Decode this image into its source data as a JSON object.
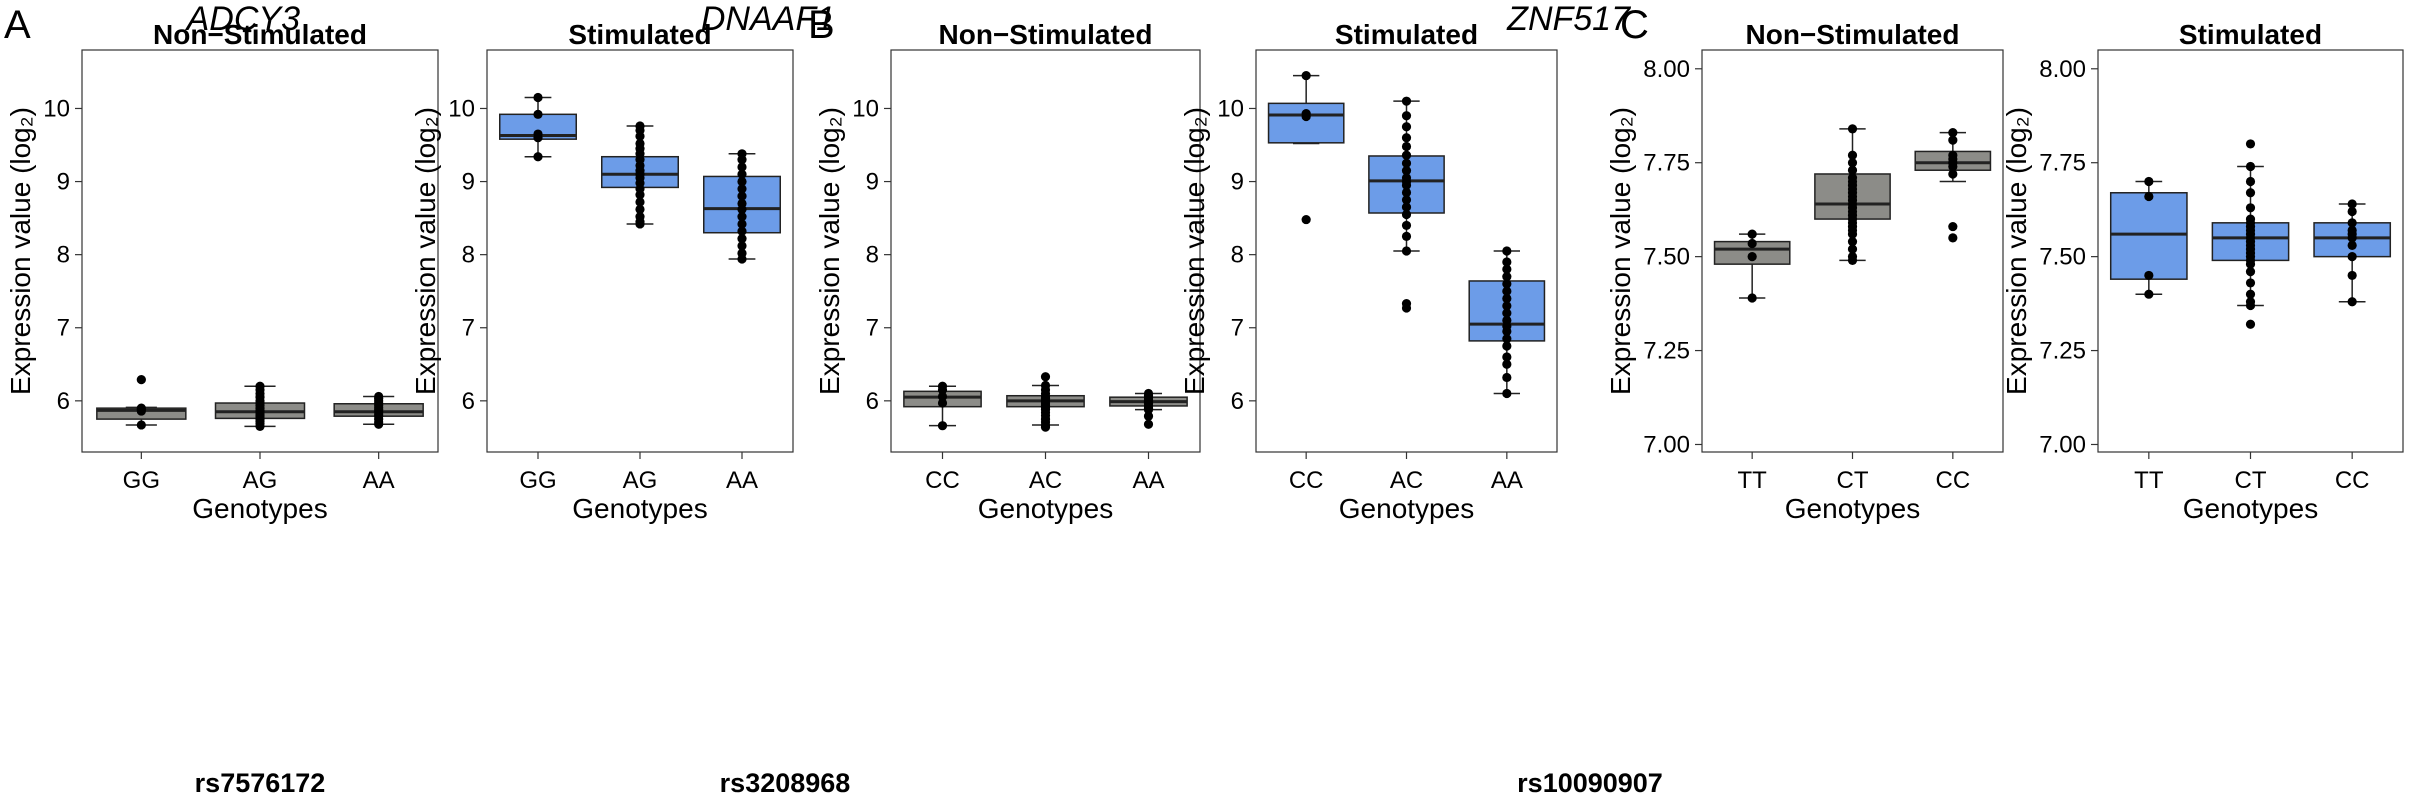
{
  "groups": [
    {
      "letter": "A",
      "gene": "ADCY3",
      "snp": "rs7576172"
    },
    {
      "letter": "B",
      "gene": "DNAAF1",
      "snp": "rs3208968"
    },
    {
      "letter": "C",
      "gene": "ZNF517",
      "snp": "rs10090907"
    }
  ],
  "colors": {
    "non_stimulated": "#8c8c88",
    "stimulated": "#6c9ce8",
    "outline": "#222222"
  },
  "chart_data": [
    {
      "type": "box",
      "group": "A",
      "title": "Non−Stimulated",
      "xlabel": "Genotypes",
      "ylabel": "Expression value (log₂)",
      "ylim": [
        5.3,
        10.8
      ],
      "yticks": [
        6,
        7,
        8,
        9,
        10
      ],
      "ytick_labels": [
        "6",
        "7",
        "8",
        "9",
        "10"
      ],
      "categories": [
        "GG",
        "AG",
        "AA"
      ],
      "color": "#8c8c88",
      "boxes": [
        {
          "min": 5.67,
          "q1": 5.75,
          "median": 5.87,
          "q3": 5.9,
          "max": 5.91,
          "points": [
            6.29,
            5.9,
            5.88,
            5.86,
            5.67
          ]
        },
        {
          "min": 5.65,
          "q1": 5.76,
          "median": 5.85,
          "q3": 5.97,
          "max": 6.2,
          "points": [
            6.2,
            6.15,
            6.1,
            6.05,
            6.0,
            5.97,
            5.94,
            5.9,
            5.87,
            5.85,
            5.82,
            5.8,
            5.78,
            5.75,
            5.72,
            5.69,
            5.65
          ]
        },
        {
          "min": 5.68,
          "q1": 5.79,
          "median": 5.85,
          "q3": 5.96,
          "max": 6.06,
          "points": [
            6.06,
            6.03,
            6.0,
            5.97,
            5.94,
            5.91,
            5.88,
            5.85,
            5.82,
            5.79,
            5.75,
            5.71,
            5.68
          ]
        }
      ]
    },
    {
      "type": "box",
      "group": "A",
      "title": "Stimulated",
      "xlabel": "Genotypes",
      "ylabel": "Expression value (log₂)",
      "ylim": [
        5.3,
        10.8
      ],
      "yticks": [
        6,
        7,
        8,
        9,
        10
      ],
      "ytick_labels": [
        "6",
        "7",
        "8",
        "9",
        "10"
      ],
      "categories": [
        "GG",
        "AG",
        "AA"
      ],
      "color": "#6c9ce8",
      "boxes": [
        {
          "min": 9.34,
          "q1": 9.58,
          "median": 9.63,
          "q3": 9.92,
          "max": 10.15,
          "points": [
            10.15,
            9.92,
            9.65,
            9.6,
            9.34
          ]
        },
        {
          "min": 8.42,
          "q1": 8.92,
          "median": 9.1,
          "q3": 9.34,
          "max": 9.76,
          "points": [
            9.76,
            9.7,
            9.62,
            9.52,
            9.45,
            9.38,
            9.3,
            9.22,
            9.15,
            9.1,
            9.05,
            8.98,
            8.9,
            8.82,
            8.72,
            8.62,
            8.52,
            8.45,
            8.42
          ]
        },
        {
          "min": 7.94,
          "q1": 8.3,
          "median": 8.63,
          "q3": 9.07,
          "max": 9.38,
          "points": [
            9.38,
            9.3,
            9.2,
            9.1,
            9.0,
            8.9,
            8.8,
            8.7,
            8.62,
            8.52,
            8.42,
            8.32,
            8.22,
            8.12,
            8.02,
            7.94
          ]
        }
      ]
    },
    {
      "type": "box",
      "group": "B",
      "title": "Non−Stimulated",
      "xlabel": "Genotypes",
      "ylabel": "Expression value (log₂)",
      "ylim": [
        5.3,
        10.8
      ],
      "yticks": [
        6,
        7,
        8,
        9,
        10
      ],
      "ytick_labels": [
        "6",
        "7",
        "8",
        "9",
        "10"
      ],
      "categories": [
        "CC",
        "AC",
        "AA"
      ],
      "color": "#8c8c88",
      "boxes": [
        {
          "min": 5.66,
          "q1": 5.92,
          "median": 6.05,
          "q3": 6.13,
          "max": 6.2,
          "points": [
            6.2,
            6.15,
            6.06,
            5.97,
            5.66
          ]
        },
        {
          "min": 5.67,
          "q1": 5.92,
          "median": 6.0,
          "q3": 6.07,
          "max": 6.21,
          "points": [
            6.33,
            6.21,
            6.15,
            6.1,
            6.06,
            6.03,
            6.0,
            5.97,
            5.94,
            5.91,
            5.88,
            5.84,
            5.8,
            5.75,
            5.71,
            5.67,
            5.64
          ]
        },
        {
          "min": 5.88,
          "q1": 5.93,
          "median": 5.99,
          "q3": 6.05,
          "max": 6.1,
          "points": [
            6.1,
            6.07,
            6.04,
            6.01,
            5.99,
            5.96,
            5.93,
            5.9,
            5.88,
            5.79,
            5.68
          ]
        }
      ]
    },
    {
      "type": "box",
      "group": "B",
      "title": "Stimulated",
      "xlabel": "Genotypes",
      "ylabel": "Expression value (log₂)",
      "ylim": [
        5.3,
        10.8
      ],
      "yticks": [
        6,
        7,
        8,
        9,
        10
      ],
      "ytick_labels": [
        "6",
        "7",
        "8",
        "9",
        "10"
      ],
      "categories": [
        "CC",
        "AC",
        "AA"
      ],
      "color": "#6c9ce8",
      "boxes": [
        {
          "min": 9.52,
          "q1": 9.53,
          "median": 9.91,
          "q3": 10.07,
          "max": 10.45,
          "points": [
            10.45,
            9.93,
            9.89,
            8.48
          ]
        },
        {
          "min": 8.05,
          "q1": 8.57,
          "median": 9.01,
          "q3": 9.35,
          "max": 10.1,
          "points": [
            10.1,
            9.9,
            9.75,
            9.6,
            9.48,
            9.36,
            9.25,
            9.15,
            9.05,
            9.0,
            8.95,
            8.85,
            8.75,
            8.65,
            8.55,
            8.4,
            8.25,
            8.05,
            7.33,
            7.27
          ]
        },
        {
          "min": 6.1,
          "q1": 6.82,
          "median": 7.05,
          "q3": 7.64,
          "max": 8.05,
          "points": [
            8.05,
            7.9,
            7.8,
            7.7,
            7.6,
            7.5,
            7.4,
            7.3,
            7.2,
            7.1,
            7.02,
            6.95,
            6.85,
            6.75,
            6.6,
            6.5,
            6.32,
            6.1
          ]
        }
      ]
    },
    {
      "type": "box",
      "group": "C",
      "title": "Non−Stimulated",
      "xlabel": "Genotypes",
      "ylabel": "Expression value (log₂)",
      "ylim": [
        6.98,
        8.05
      ],
      "yticks": [
        7.0,
        7.25,
        7.5,
        7.75,
        8.0
      ],
      "ytick_labels": [
        "7.00",
        "7.25",
        "7.50",
        "7.75",
        "8.00"
      ],
      "categories": [
        "TT",
        "CT",
        "CC"
      ],
      "color": "#8c8c88",
      "boxes": [
        {
          "min": 7.39,
          "q1": 7.48,
          "median": 7.52,
          "q3": 7.54,
          "max": 7.56,
          "points": [
            7.56,
            7.535,
            7.5,
            7.39
          ]
        },
        {
          "min": 7.49,
          "q1": 7.6,
          "median": 7.64,
          "q3": 7.72,
          "max": 7.84,
          "points": [
            7.84,
            7.77,
            7.75,
            7.73,
            7.71,
            7.7,
            7.69,
            7.68,
            7.67,
            7.66,
            7.65,
            7.64,
            7.63,
            7.62,
            7.61,
            7.6,
            7.59,
            7.58,
            7.57,
            7.56,
            7.54,
            7.52,
            7.5,
            7.49
          ]
        },
        {
          "min": 7.7,
          "q1": 7.73,
          "median": 7.75,
          "q3": 7.78,
          "max": 7.83,
          "points": [
            7.83,
            7.81,
            7.77,
            7.76,
            7.75,
            7.74,
            7.72,
            7.58,
            7.55
          ]
        }
      ]
    },
    {
      "type": "box",
      "group": "C",
      "title": "Stimulated",
      "xlabel": "Genotypes",
      "ylabel": "Expression value (log₂)",
      "ylim": [
        6.98,
        8.05
      ],
      "yticks": [
        7.0,
        7.25,
        7.5,
        7.75,
        8.0
      ],
      "ytick_labels": [
        "7.00",
        "7.25",
        "7.50",
        "7.75",
        "8.00"
      ],
      "categories": [
        "TT",
        "CT",
        "CC"
      ],
      "color": "#6c9ce8",
      "boxes": [
        {
          "min": 7.4,
          "q1": 7.44,
          "median": 7.56,
          "q3": 7.67,
          "max": 7.7,
          "points": [
            7.7,
            7.66,
            7.45,
            7.4
          ]
        },
        {
          "min": 7.37,
          "q1": 7.49,
          "median": 7.55,
          "q3": 7.59,
          "max": 7.74,
          "points": [
            7.8,
            7.74,
            7.7,
            7.67,
            7.63,
            7.6,
            7.59,
            7.58,
            7.57,
            7.56,
            7.55,
            7.54,
            7.53,
            7.52,
            7.51,
            7.5,
            7.49,
            7.48,
            7.46,
            7.43,
            7.4,
            7.38,
            7.37,
            7.32
          ]
        },
        {
          "min": 7.38,
          "q1": 7.5,
          "median": 7.55,
          "q3": 7.59,
          "max": 7.64,
          "points": [
            7.64,
            7.62,
            7.59,
            7.57,
            7.56,
            7.55,
            7.53,
            7.5,
            7.45,
            7.38
          ]
        }
      ]
    }
  ]
}
